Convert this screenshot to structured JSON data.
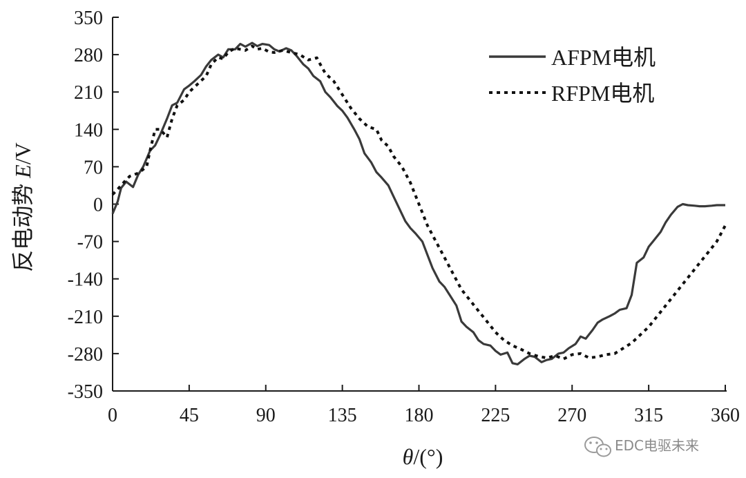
{
  "chart_data": {
    "type": "line",
    "title": "",
    "xlabel_prefix": "θ",
    "xlabel_suffix": "/(°)",
    "ylabel_prefix": "反电动势 ",
    "ylabel_italic": "E",
    "ylabel_suffix": "/V",
    "xlim": [
      0,
      360
    ],
    "ylim": [
      -350,
      350
    ],
    "xticks": [
      0,
      45,
      90,
      135,
      180,
      225,
      270,
      315,
      360
    ],
    "yticks": [
      350,
      280,
      210,
      140,
      70,
      0,
      -70,
      -140,
      -210,
      -280,
      -350
    ],
    "grid": false,
    "legend_position": "top-right",
    "colors": {
      "axis": "#1a1a1a",
      "afpm": "#3a3a3a",
      "rfpm": "#111111"
    },
    "series": [
      {
        "name": "AFPM电机",
        "style": "solid",
        "x": [
          0,
          3,
          5,
          8,
          12,
          15,
          18,
          22,
          25,
          28,
          32,
          35,
          38,
          42,
          45,
          48,
          52,
          55,
          58,
          62,
          65,
          68,
          72,
          75,
          78,
          82,
          85,
          88,
          92,
          95,
          98,
          102,
          105,
          108,
          112,
          115,
          118,
          122,
          125,
          128,
          132,
          135,
          138,
          142,
          145,
          148,
          152,
          155,
          158,
          162,
          165,
          168,
          172,
          175,
          178,
          182,
          185,
          188,
          192,
          195,
          198,
          202,
          205,
          208,
          212,
          215,
          218,
          222,
          225,
          228,
          232,
          235,
          238,
          242,
          245,
          248,
          252,
          255,
          258,
          262,
          265,
          268,
          272,
          275,
          278,
          282,
          285,
          288,
          292,
          295,
          298,
          302,
          305,
          308,
          312,
          315,
          318,
          322,
          325,
          328,
          332,
          335,
          338,
          342,
          345,
          348,
          352,
          355,
          358,
          360
        ],
        "y": [
          -18,
          5,
          30,
          42,
          32,
          55,
          70,
          100,
          110,
          130,
          160,
          185,
          190,
          215,
          222,
          230,
          242,
          258,
          270,
          280,
          275,
          290,
          290,
          300,
          295,
          302,
          296,
          300,
          298,
          290,
          286,
          292,
          288,
          278,
          262,
          254,
          240,
          230,
          210,
          200,
          184,
          175,
          162,
          140,
          122,
          95,
          78,
          60,
          50,
          35,
          15,
          -5,
          -32,
          -45,
          -55,
          -70,
          -95,
          -120,
          -145,
          -155,
          -170,
          -190,
          -220,
          -230,
          -240,
          -255,
          -262,
          -265,
          -275,
          -282,
          -278,
          -298,
          -300,
          -290,
          -284,
          -286,
          -296,
          -292,
          -290,
          -280,
          -278,
          -270,
          -262,
          -248,
          -252,
          -236,
          -222,
          -216,
          -210,
          -205,
          -198,
          -195,
          -170,
          -110,
          -100,
          -80,
          -68,
          -52,
          -34,
          -20,
          -5,
          0,
          -2,
          -3,
          -4,
          -4,
          -3,
          -2,
          -2,
          -2
        ]
      },
      {
        "name": "RFPM电机",
        "style": "dotted",
        "x": [
          0,
          3,
          7,
          10,
          15,
          20,
          22,
          25,
          28,
          32,
          35,
          38,
          42,
          45,
          50,
          55,
          58,
          62,
          65,
          68,
          72,
          75,
          78,
          82,
          85,
          88,
          92,
          95,
          100,
          105,
          110,
          115,
          120,
          122,
          125,
          130,
          135,
          140,
          145,
          150,
          155,
          158,
          162,
          165,
          170,
          175,
          180,
          185,
          190,
          195,
          200,
          205,
          210,
          215,
          220,
          225,
          230,
          235,
          240,
          245,
          250,
          255,
          260,
          265,
          270,
          275,
          280,
          285,
          290,
          295,
          300,
          305,
          310,
          315,
          320,
          325,
          330,
          335,
          340,
          345,
          350,
          355,
          360
        ],
        "y": [
          18,
          28,
          42,
          52,
          58,
          70,
          100,
          140,
          140,
          125,
          160,
          185,
          195,
          210,
          225,
          240,
          262,
          275,
          272,
          285,
          292,
          290,
          288,
          296,
          290,
          292,
          285,
          284,
          288,
          284,
          280,
          270,
          274,
          262,
          245,
          230,
          205,
          180,
          160,
          145,
          140,
          120,
          108,
          90,
          70,
          40,
          0,
          -40,
          -70,
          -100,
          -130,
          -160,
          -180,
          -200,
          -220,
          -240,
          -255,
          -265,
          -272,
          -280,
          -285,
          -288,
          -284,
          -290,
          -282,
          -280,
          -288,
          -286,
          -282,
          -280,
          -270,
          -260,
          -245,
          -230,
          -210,
          -190,
          -170,
          -150,
          -130,
          -110,
          -90,
          -70,
          -40
        ]
      }
    ]
  },
  "watermark": {
    "text": "EDC电驱未来",
    "icon": "wechat-icon"
  }
}
